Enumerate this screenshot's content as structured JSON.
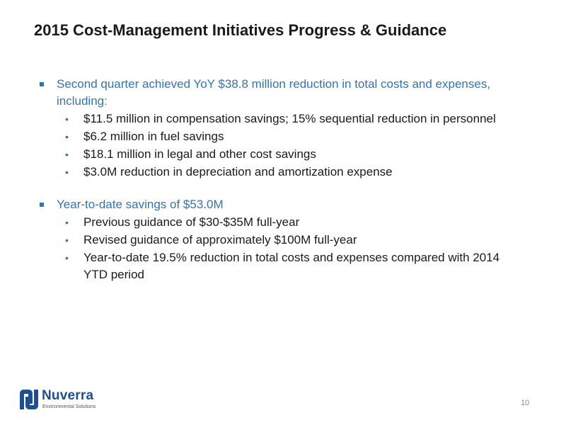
{
  "slide": {
    "title": "2015 Cost-Management Initiatives Progress & Guidance",
    "page_number": "10"
  },
  "sections": [
    {
      "main": "Second quarter achieved YoY $38.8 million reduction in total costs and expenses, including:",
      "subs": [
        "$11.5 million  in compensation savings; 15% sequential reduction in personnel",
        "$6.2 million in fuel savings",
        "$18.1 million in legal and other cost savings",
        "$3.0M reduction in depreciation and amortization expense"
      ]
    },
    {
      "main": "Year-to-date savings of $53.0M",
      "subs": [
        "Previous guidance of $30-$35M full-year",
        "Revised guidance of approximately $100M full-year",
        "Year-to-date 19.5% reduction in total costs and expenses compared with 2014 YTD period"
      ]
    }
  ],
  "logo": {
    "name": "Nuverra",
    "tagline": "Environmental Solutions",
    "color": "#1d4f91"
  },
  "colors": {
    "accent": "#2e75b6",
    "text": "#1a1a1a"
  },
  "icons": {
    "main_bullet": "square-bullet-icon",
    "sub_bullet": "round-bullet-icon",
    "logo": "nuverra-logo-icon"
  }
}
